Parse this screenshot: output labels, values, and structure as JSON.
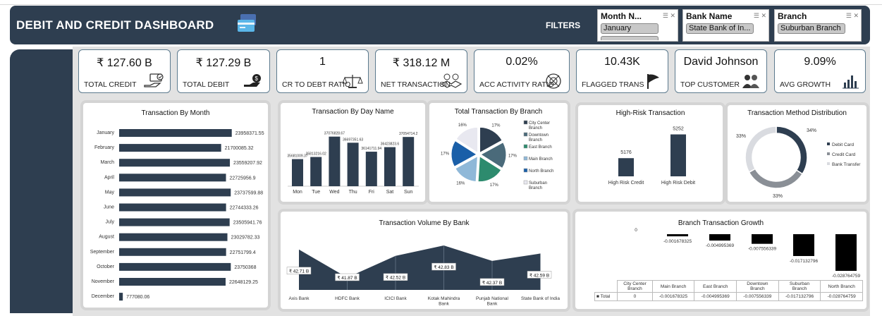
{
  "header": {
    "title": "DEBIT AND CREDIT DASHBOARD",
    "filters_label": "FILTERS",
    "icon": "credit-card-icon"
  },
  "slicers": [
    {
      "title": "Month N...",
      "selected": "January"
    },
    {
      "title": "Bank Name",
      "selected": "State Bank of In..."
    },
    {
      "title": "Branch",
      "selected": "Suburban Branch"
    }
  ],
  "kpis": [
    {
      "value": "₹ 127.60 B",
      "label": "TOTAL CREDIT",
      "icon": "credit-hand-icon"
    },
    {
      "value": "₹ 127.29 B",
      "label": "TOTAL DEBIT",
      "icon": "money-hand-icon"
    },
    {
      "value": "1",
      "label": "CR TO DEBT RATIO",
      "icon": "scale-icon"
    },
    {
      "value": "₹ 318.12 M",
      "label": "NET TRANSACTION",
      "icon": "handshake-icon"
    },
    {
      "value": "0.02%",
      "label": "ACC ACTIVITY RATIO",
      "icon": "target-icon"
    },
    {
      "value": "10.43K",
      "label": "FLAGGED TRANS",
      "icon": "flag-icon"
    },
    {
      "value": "David Johnson",
      "label": "TOP CUSTOMER",
      "icon": "people-icon"
    },
    {
      "value": "9.09%",
      "label": "AVG GROWTH",
      "icon": "growth-bars-icon"
    }
  ],
  "colors": {
    "navy": "#2e3e50",
    "bar": "#2e3e50",
    "panel_border": "#d4d4d4",
    "background": "#e2e2e2"
  },
  "chart_data": [
    {
      "id": "month",
      "type": "bar",
      "orientation": "horizontal",
      "title": "Transaction By Month",
      "categories": [
        "January",
        "February",
        "March",
        "April",
        "May",
        "June",
        "July",
        "August",
        "September",
        "October",
        "November",
        "December"
      ],
      "values": [
        23958371.55,
        21700085.32,
        23559207.92,
        22725956.9,
        23737599.88,
        22744333.26,
        23505941.76,
        23029782.33,
        22751799.4,
        23750368,
        22648129.25,
        777080.06
      ],
      "labels": [
        "23958371.55",
        "21700085.32",
        "23559207.92",
        "22725956.9",
        "23737599.88",
        "22744333.26",
        "23505941.76",
        "23029782.33",
        "22751799.4",
        "23750368",
        "22648129.25",
        "777080.06"
      ]
    },
    {
      "id": "day",
      "type": "bar",
      "title": "Transaction By Day Name",
      "categories": [
        "Mon",
        "Tue",
        "Wed",
        "Thu",
        "Fri",
        "Sat",
        "Sun"
      ],
      "values": [
        35681009.37,
        35813216.02,
        37076828.67,
        36697351.63,
        36141711.94,
        36423823.6,
        37054714.2
      ],
      "labels": [
        "35681009.37",
        "35813216.02",
        "37076828.67",
        "36697351.63",
        "36141711.94",
        "36423823.6",
        "37054714.2"
      ]
    },
    {
      "id": "branch",
      "type": "pie",
      "title": "Total Transaction By Branch",
      "categories": [
        "City Center Branch",
        "Downtown Branch",
        "East Branch",
        "Main Branch",
        "North Branch",
        "Suburban Branch"
      ],
      "legend": [
        [
          "City Center",
          "Branch"
        ],
        [
          "Downtown",
          "Branch"
        ],
        [
          "East Branch"
        ],
        [
          "Main Branch"
        ],
        [
          "North Branch"
        ],
        [
          "Suburban",
          "Branch"
        ]
      ],
      "values": [
        17,
        17,
        17,
        16,
        17,
        16
      ],
      "labels": [
        "17%",
        "17%",
        "17%",
        "16%",
        "17%",
        "16%"
      ],
      "colors": [
        "#2e3e50",
        "#4a6a7a",
        "#2d8b6e",
        "#8fb8d8",
        "#1a5fa8",
        "#e8e8f0"
      ]
    },
    {
      "id": "risk",
      "type": "bar",
      "title": "High-Risk Transaction",
      "categories": [
        "High Risk Credit",
        "High Risk Debit"
      ],
      "values": [
        5176,
        5252
      ]
    },
    {
      "id": "method",
      "type": "pie",
      "donut": true,
      "title": "Transaction Method Distribution",
      "categories": [
        "Debit Card",
        "Credit Card",
        "Bank Transfer"
      ],
      "values": [
        34,
        33,
        33
      ],
      "labels": [
        "34%",
        "33%",
        "33%"
      ],
      "colors": [
        "#2e3e50",
        "#8a8f96",
        "#d9dbe0"
      ]
    },
    {
      "id": "bank",
      "type": "area",
      "title": "Transaction Volume By Bank",
      "categories": [
        [
          "Axis Bank"
        ],
        [
          "HDFC Bank"
        ],
        [
          "ICICI Bank"
        ],
        [
          "Kotak Mahindra",
          "Bank"
        ],
        [
          "Punjab National",
          "Bank"
        ],
        [
          "State Bank of India"
        ]
      ],
      "values": [
        42.71,
        41.87,
        42.52,
        42.83,
        42.37,
        42.59
      ],
      "labels": [
        "₹ 42.71 B",
        "₹ 41.87 B",
        "₹ 42.52 B",
        "₹ 42.83 B",
        "₹ 42.37 B",
        "₹ 42.59 B"
      ]
    },
    {
      "id": "growth",
      "type": "bar",
      "title": "Branch Transaction Growth",
      "zero_label": "0",
      "categories": [
        [
          "City Center",
          "Branch"
        ],
        [
          "Main Branch"
        ],
        [
          "East Branch"
        ],
        [
          "Downtown",
          "Branch"
        ],
        [
          "Suburban",
          "Branch"
        ],
        [
          "North Branch"
        ]
      ],
      "values": [
        0,
        -0.001678325,
        -0.004995369,
        -0.007556339,
        -0.017132796,
        -0.028764759
      ],
      "labels": [
        "",
        "-0.001678325",
        "-0.004995369",
        "-0.007556339",
        "-0.017132796",
        "-0.028764759"
      ],
      "table_row_label": "Total",
      "table_values": [
        "0",
        "-0.001678325",
        "-0.004995369",
        "-0.007556339",
        "-0.017132796",
        "-0.028764759"
      ]
    }
  ]
}
